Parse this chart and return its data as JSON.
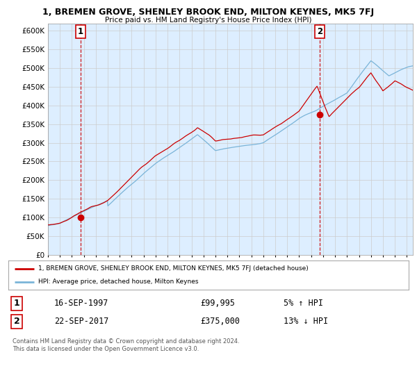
{
  "title": "1, BREMEN GROVE, SHENLEY BROOK END, MILTON KEYNES, MK5 7FJ",
  "subtitle": "Price paid vs. HM Land Registry's House Price Index (HPI)",
  "ytick_vals": [
    0,
    50000,
    100000,
    150000,
    200000,
    250000,
    300000,
    350000,
    400000,
    450000,
    500000,
    550000,
    600000
  ],
  "ylim": [
    0,
    620000
  ],
  "xlim_start": 1995.0,
  "xlim_end": 2025.5,
  "hpi_color": "#7ab4d8",
  "price_color": "#cc0000",
  "marker1_date": 1997.71,
  "marker1_price": 99995,
  "marker2_date": 2017.72,
  "marker2_price": 375000,
  "annotation1": "1",
  "annotation2": "2",
  "legend_line1": "1, BREMEN GROVE, SHENLEY BROOK END, MILTON KEYNES, MK5 7FJ (detached house)",
  "legend_line2": "HPI: Average price, detached house, Milton Keynes",
  "table_row1_num": "1",
  "table_row1_date": "16-SEP-1997",
  "table_row1_price": "£99,995",
  "table_row1_hpi": "5% ↑ HPI",
  "table_row2_num": "2",
  "table_row2_date": "22-SEP-2017",
  "table_row2_price": "£375,000",
  "table_row2_hpi": "13% ↓ HPI",
  "footer": "Contains HM Land Registry data © Crown copyright and database right 2024.\nThis data is licensed under the Open Government Licence v3.0.",
  "grid_color": "#cccccc",
  "bg_color": "#ffffff",
  "plot_bg_color": "#ddeeff"
}
